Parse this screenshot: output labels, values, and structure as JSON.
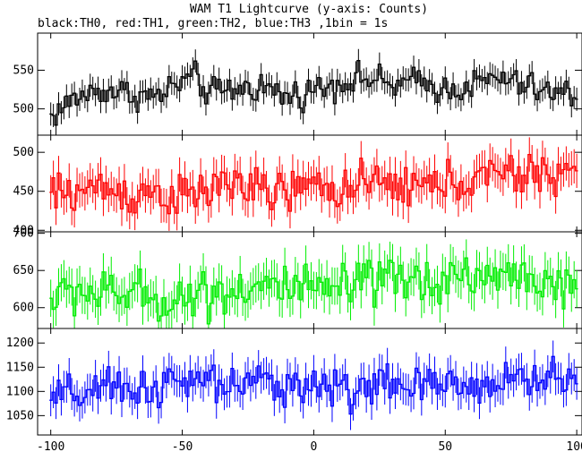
{
  "chart_data": {
    "type": "line",
    "title": "WAM T1 Lightcurve (y-axis: Counts)",
    "subtitle": "black:TH0, red:TH1, green:TH2, blue:TH3 ,1bin = 1s",
    "xlim": [
      -105,
      102
    ],
    "x_ticks": [
      -100,
      -50,
      0,
      50,
      100
    ],
    "grid": false,
    "panels": [
      {
        "name": "TH0",
        "color": "#000000",
        "ylim": [
          466,
          598
        ],
        "y_ticks": [
          500,
          550
        ],
        "x": [
          -100,
          -90,
          -80,
          -70,
          -60,
          -50,
          -45,
          -40,
          -30,
          -20,
          -10,
          0,
          10,
          20,
          30,
          40,
          50,
          60,
          70,
          80,
          90,
          100
        ],
        "values": [
          490,
          515,
          525,
          520,
          515,
          535,
          540,
          520,
          525,
          530,
          515,
          525,
          535,
          540,
          530,
          535,
          525,
          530,
          540,
          530,
          520,
          520
        ],
        "error": 15
      },
      {
        "name": "TH1",
        "color": "#ff0000",
        "ylim": [
          398,
          522
        ],
        "y_ticks": [
          400,
          450,
          500
        ],
        "x": [
          -100,
          -90,
          -80,
          -70,
          -60,
          -50,
          -40,
          -30,
          -20,
          -10,
          0,
          10,
          20,
          30,
          40,
          50,
          60,
          70,
          80,
          90,
          100
        ],
        "values": [
          445,
          450,
          455,
          445,
          450,
          440,
          450,
          465,
          445,
          450,
          455,
          455,
          455,
          460,
          455,
          460,
          465,
          470,
          470,
          475,
          475
        ],
        "error": 22
      },
      {
        "name": "TH2",
        "color": "#00ee00",
        "ylim": [
          572,
          702
        ],
        "y_ticks": [
          600,
          650,
          700
        ],
        "x": [
          -100,
          -90,
          -80,
          -70,
          -60,
          -50,
          -40,
          -30,
          -20,
          -10,
          0,
          10,
          20,
          30,
          40,
          50,
          60,
          70,
          80,
          90,
          100
        ],
        "values": [
          610,
          625,
          615,
          620,
          610,
          615,
          620,
          625,
          630,
          625,
          620,
          625,
          630,
          635,
          635,
          640,
          645,
          640,
          645,
          635,
          610
        ],
        "error": 25
      },
      {
        "name": "TH3",
        "color": "#0000ff",
        "ylim": [
          1010,
          1230
        ],
        "y_ticks": [
          1050,
          1100,
          1150,
          1200
        ],
        "x": [
          -100,
          -90,
          -80,
          -70,
          -60,
          -50,
          -40,
          -30,
          -20,
          -10,
          0,
          10,
          20,
          30,
          40,
          50,
          60,
          70,
          80,
          90,
          100
        ],
        "values": [
          1080,
          1095,
          1100,
          1105,
          1110,
          1115,
          1120,
          1110,
          1115,
          1120,
          1110,
          1105,
          1110,
          1115,
          1105,
          1110,
          1115,
          1120,
          1125,
          1130,
          1120
        ],
        "error": 33
      }
    ]
  }
}
